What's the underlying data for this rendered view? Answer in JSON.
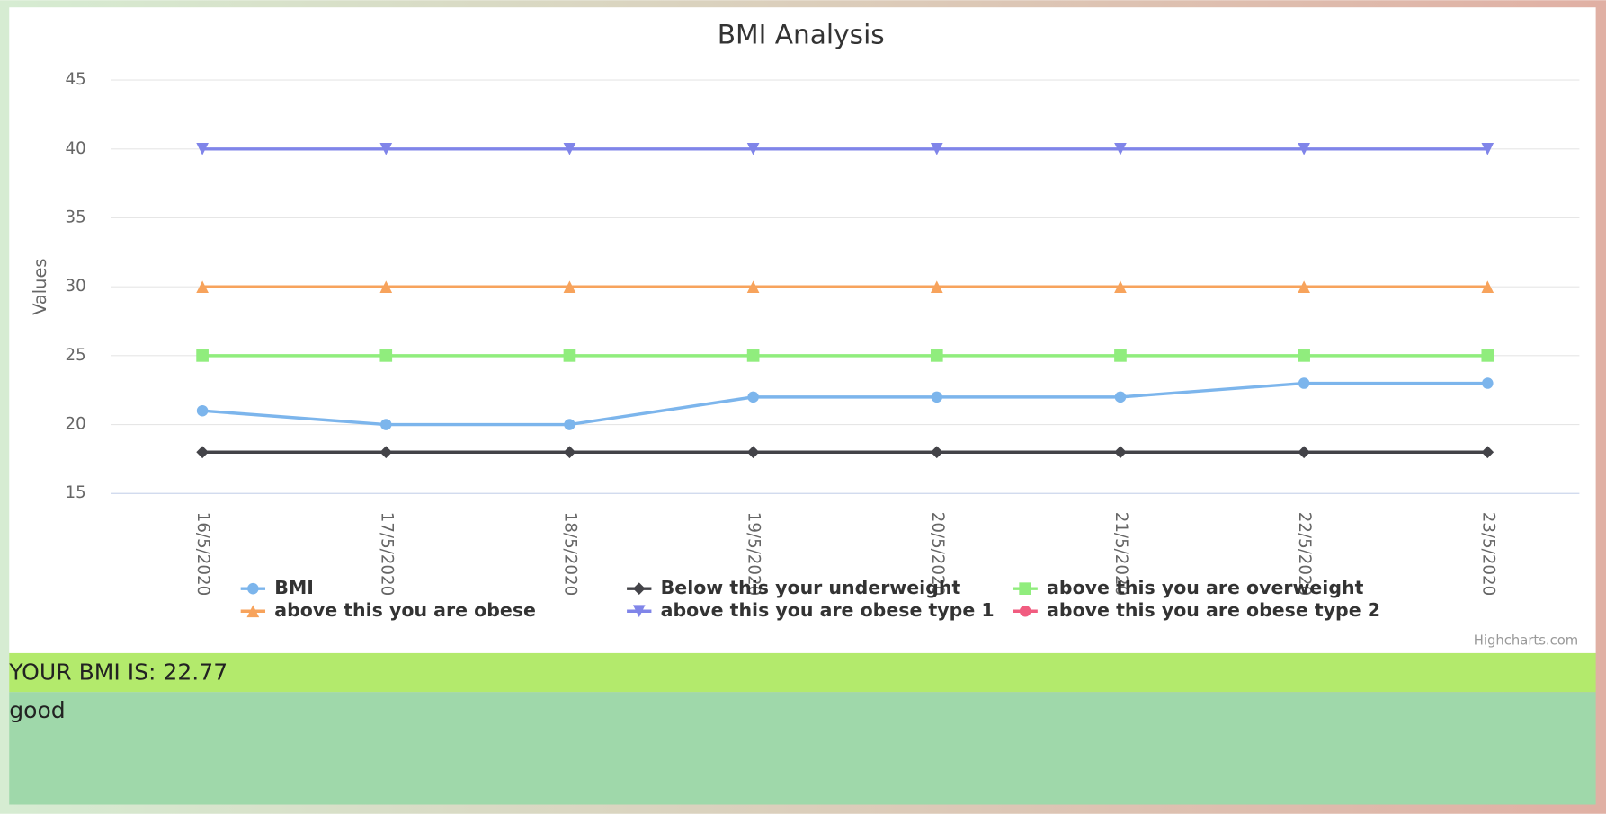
{
  "chart_data": {
    "type": "line",
    "title": "BMI Analysis",
    "y_label": "Values",
    "categories": [
      "16/5/2020",
      "17/5/2020",
      "18/5/2020",
      "19/5/2020",
      "20/5/2020",
      "21/5/2020",
      "22/5/2020",
      "23/5/2020"
    ],
    "series": [
      {
        "name": "BMI",
        "color": "#7cb5ec",
        "marker": "circle",
        "values": [
          21,
          20,
          20,
          22,
          22,
          22,
          23,
          23
        ]
      },
      {
        "name": "Below this your underweight",
        "color": "#434348",
        "marker": "diamond",
        "values": [
          18,
          18,
          18,
          18,
          18,
          18,
          18,
          18
        ]
      },
      {
        "name": "above this you are overweight",
        "color": "#90ed7d",
        "marker": "square",
        "values": [
          25,
          25,
          25,
          25,
          25,
          25,
          25,
          25
        ]
      },
      {
        "name": "above this you are obese",
        "color": "#f7a35c",
        "marker": "triangle",
        "values": [
          30,
          30,
          30,
          30,
          30,
          30,
          30,
          30
        ]
      },
      {
        "name": "above this you are obese type 1",
        "color": "#8085e9",
        "marker": "triangle-down",
        "values": [
          40,
          40,
          40,
          40,
          40,
          40,
          40,
          40
        ]
      },
      {
        "name": "above this you are obese type 2",
        "color": "#f15c80",
        "marker": "circle",
        "values": [
          null,
          null,
          null,
          null,
          null,
          null,
          null,
          null
        ]
      }
    ],
    "ylim": [
      15,
      45
    ],
    "yticks": [
      15,
      20,
      25,
      30,
      35,
      40,
      45
    ],
    "grid": true,
    "legend": "bottom",
    "credits": "Highcharts.com"
  },
  "result": {
    "bmi": "YOUR BMI IS: 22.77",
    "status": "good"
  }
}
